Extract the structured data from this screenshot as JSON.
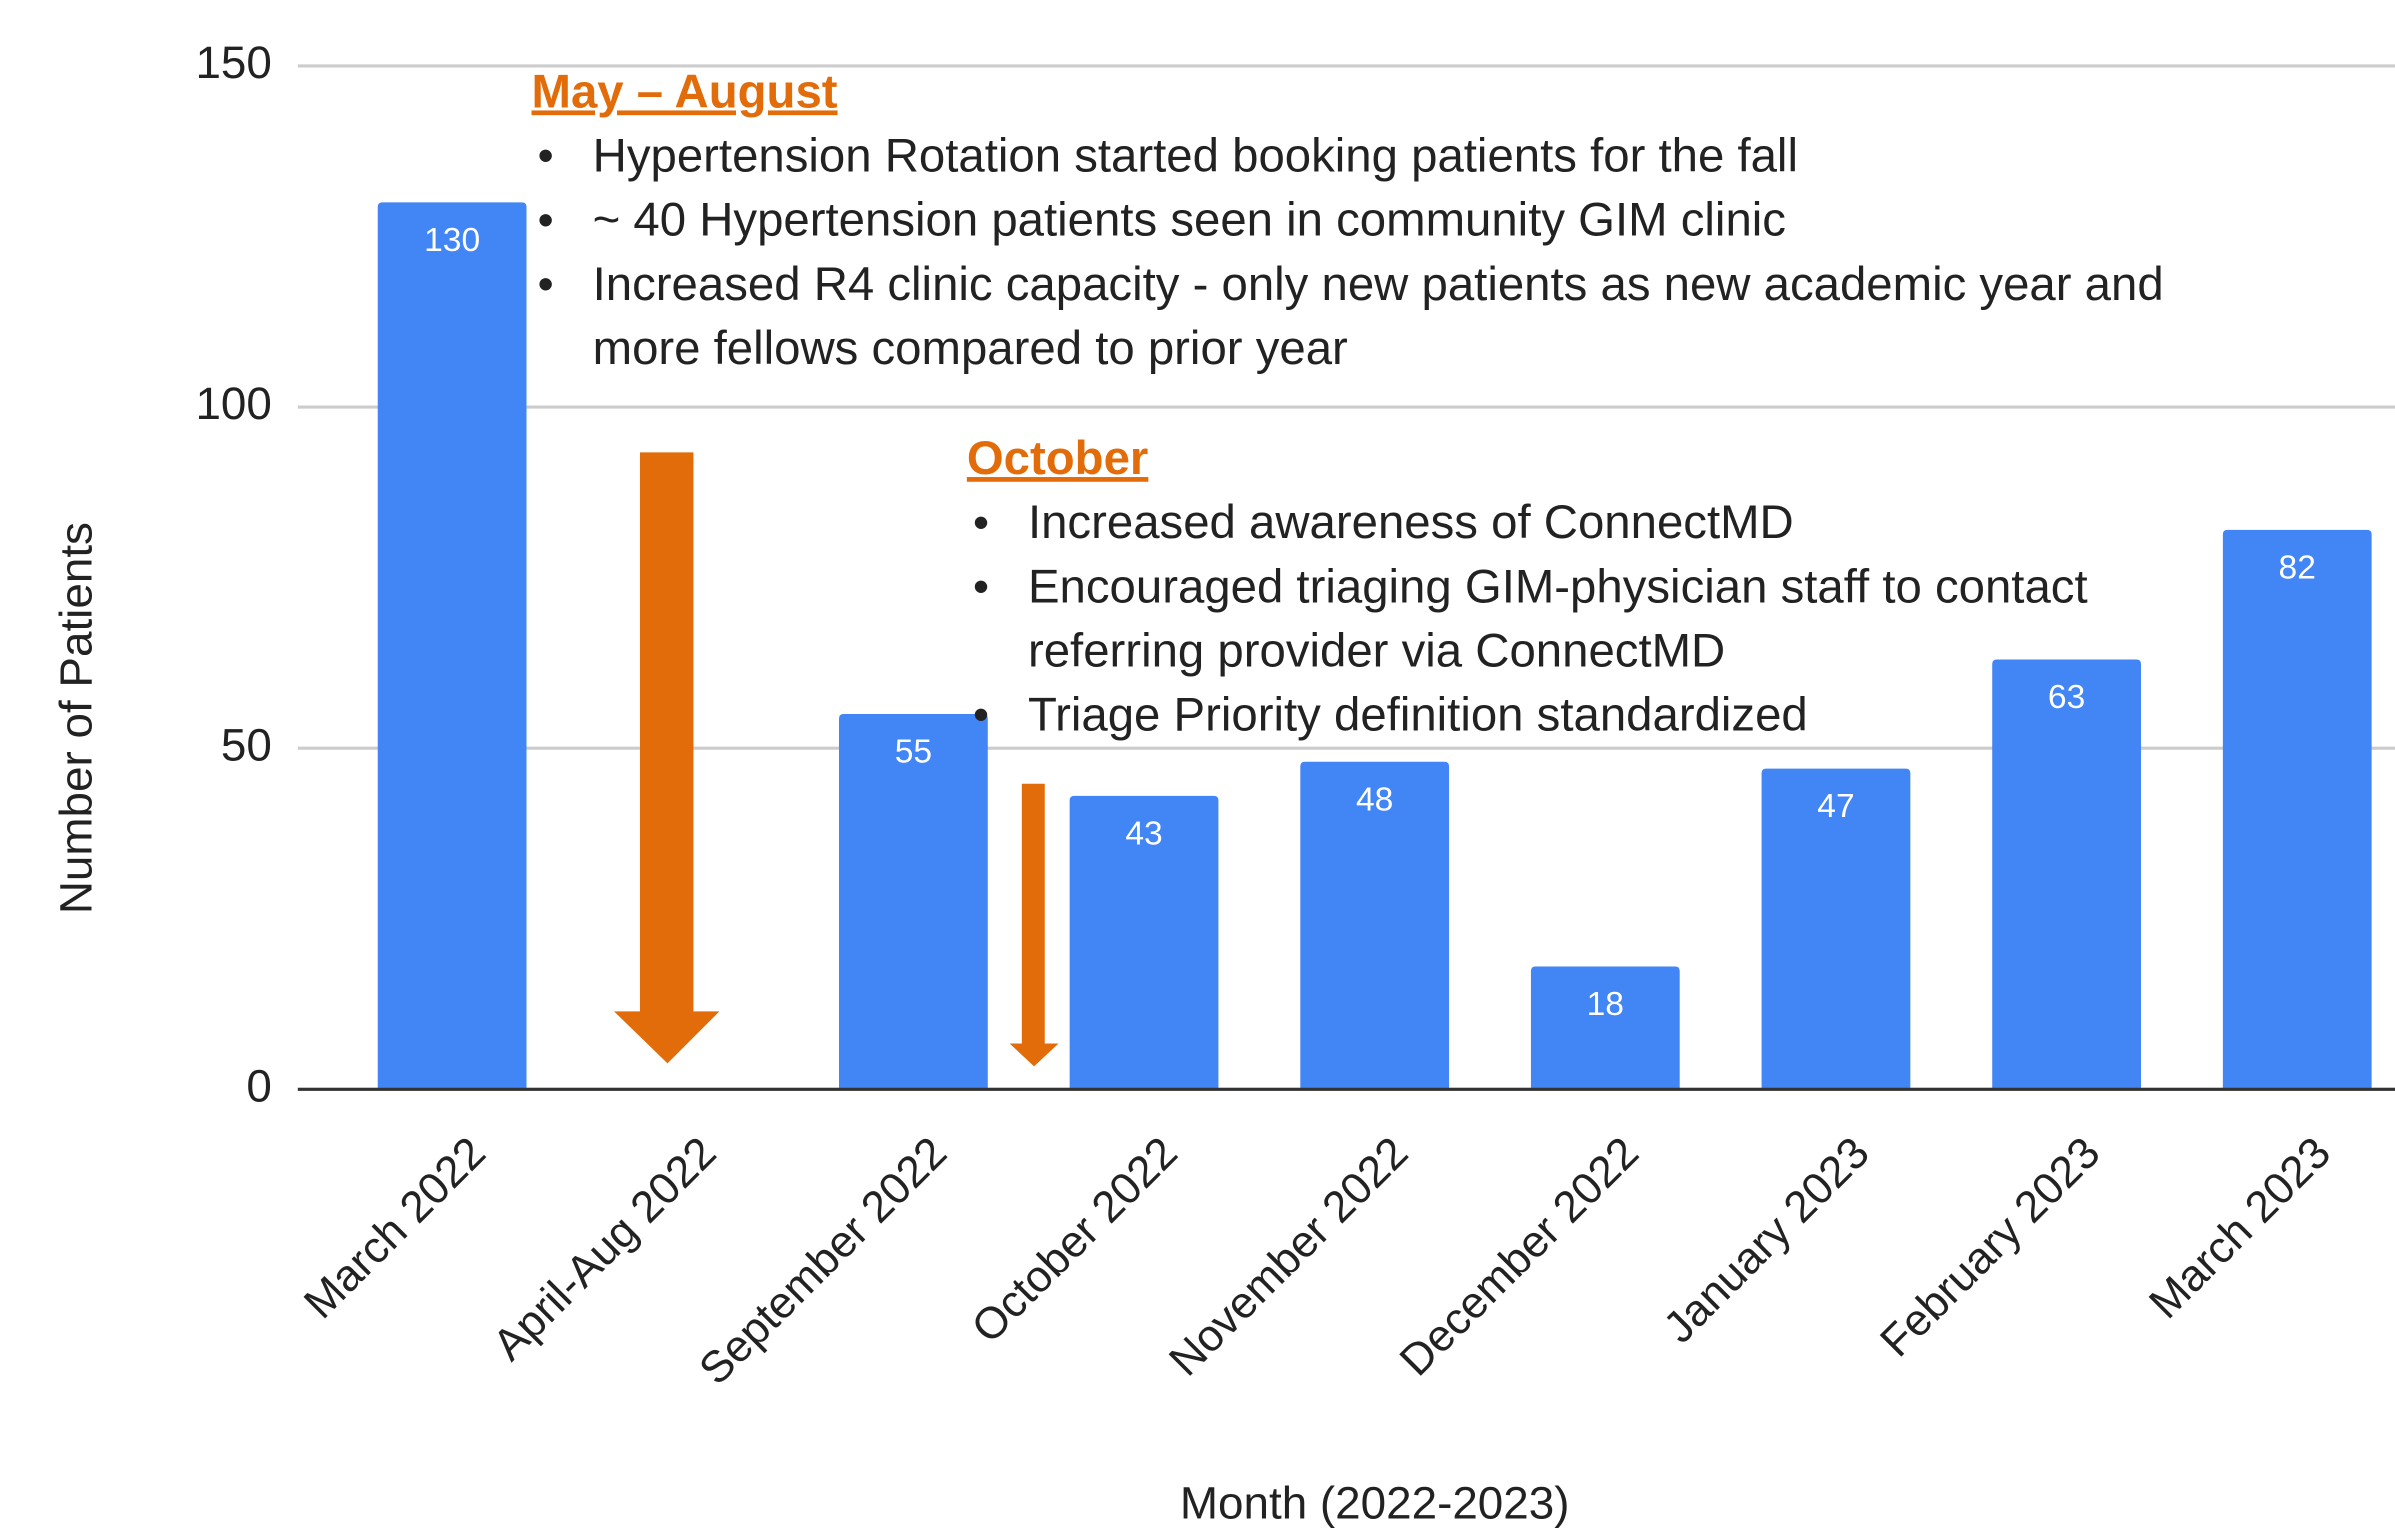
{
  "chart_data": {
    "type": "bar",
    "categories": [
      "March 2022",
      "April-Aug 2022",
      "September 2022",
      "October 2022",
      "November 2022",
      "December 2022",
      "January 2023",
      "February 2023",
      "March 2023"
    ],
    "values": [
      130,
      null,
      55,
      43,
      48,
      18,
      47,
      63,
      82
    ],
    "color": "#4285f4",
    "ylim": [
      0,
      150
    ],
    "yticks": [
      0,
      50,
      100,
      150
    ],
    "grid": true,
    "x_label": "Month (2022-2023)",
    "y_label": "Number of Patients",
    "annotations": [
      {
        "title": "May – August",
        "color": "#e36c0a",
        "items": [
          [
            "Hypertension Rotation started booking patients for the fall"
          ],
          [
            "~ 40 Hypertension patients seen in community GIM clinic"
          ],
          [
            "Increased R4 clinic capacity - only new patients as new academic year and",
            "more fellows compared to prior year"
          ]
        ]
      },
      {
        "title": "October",
        "color": "#e36c0a",
        "items": [
          [
            "Increased awareness of ConnectMD"
          ],
          [
            "Encouraged triaging GIM-physician staff to contact",
            "referring provider via ConnectMD"
          ],
          [
            "Triage Priority definition standardized"
          ]
        ]
      }
    ]
  }
}
